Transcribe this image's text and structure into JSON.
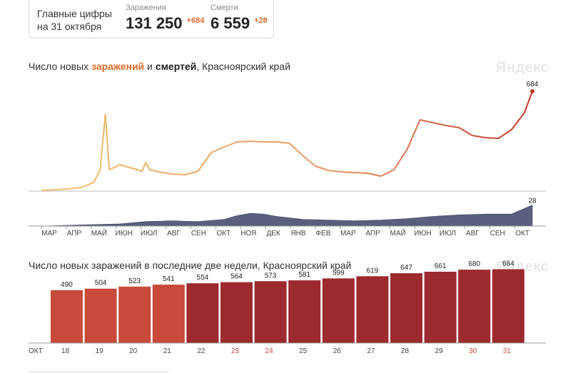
{
  "summary": {
    "heading": "Главные цифры на 31 октября",
    "cases": {
      "label": "Заражения",
      "value": "131 250",
      "delta": "+684"
    },
    "deaths": {
      "label": "Смерти",
      "value": "6 559",
      "delta": "+28"
    }
  },
  "chart1": {
    "title_prefix": "Число новых ",
    "title_cases": "заражений",
    "title_mid": " и ",
    "title_deaths": "смертей",
    "title_suffix": ", Красноярский край",
    "brand": "Яндекс"
  },
  "chart2": {
    "title": "Число новых заражений в последние две недели, Красноярский край",
    "brand": "Яндекс"
  },
  "colors": {
    "cases_line_start": "#f0c26a",
    "cases_line_end": "#c0392b",
    "deaths_area": "#5a5f7e",
    "bar_light": "#c94a3a",
    "bar_dark": "#9c2a2e",
    "weekend": "#d0443a"
  },
  "chart_data": [
    {
      "type": "line",
      "series": [
        {
          "name": "заражений",
          "end_label": "684",
          "points": [
            [
              0,
              1
            ],
            [
              1,
              2
            ],
            [
              2,
              3
            ],
            [
              3,
              5
            ],
            [
              4,
              12
            ],
            [
              4.5,
              30
            ],
            [
              4.9,
              108
            ],
            [
              5.2,
              30
            ],
            [
              6,
              37
            ],
            [
              7,
              32
            ],
            [
              7.7,
              28
            ],
            [
              8,
              40
            ],
            [
              8.3,
              30
            ],
            [
              9,
              27
            ],
            [
              10,
              24
            ],
            [
              11,
              23
            ],
            [
              12,
              28
            ],
            [
              13,
              54
            ],
            [
              14,
              62
            ],
            [
              15,
              69
            ],
            [
              16,
              70
            ],
            [
              17,
              69
            ],
            [
              18,
              69
            ],
            [
              19,
              67
            ],
            [
              20,
              50
            ],
            [
              21,
              35
            ],
            [
              22,
              29
            ],
            [
              23,
              27
            ],
            [
              24,
              26
            ],
            [
              25,
              25
            ],
            [
              26,
              21
            ],
            [
              27,
              30
            ],
            [
              28,
              58
            ],
            [
              29,
              100
            ],
            [
              30,
              96
            ],
            [
              31,
              92
            ],
            [
              32,
              89
            ],
            [
              33,
              78
            ],
            [
              34,
              75
            ],
            [
              35,
              74
            ],
            [
              36,
              86
            ],
            [
              37,
              110
            ],
            [
              37.6,
              140
            ]
          ]
        },
        {
          "name": "смертей",
          "end_label": "28",
          "points": [
            [
              0,
              0
            ],
            [
              2,
              1
            ],
            [
              4,
              2
            ],
            [
              6,
              3
            ],
            [
              8,
              6
            ],
            [
              10,
              7
            ],
            [
              12,
              6
            ],
            [
              14,
              9
            ],
            [
              15,
              14
            ],
            [
              16,
              17
            ],
            [
              17,
              16
            ],
            [
              18,
              13
            ],
            [
              19,
              11
            ],
            [
              20,
              9
            ],
            [
              22,
              8
            ],
            [
              24,
              7
            ],
            [
              26,
              8
            ],
            [
              28,
              10
            ],
            [
              30,
              13
            ],
            [
              32,
              15
            ],
            [
              34,
              16
            ],
            [
              36,
              16
            ],
            [
              37.6,
              28
            ]
          ]
        }
      ],
      "x_ticks": [
        "МАР",
        "АПР",
        "МАЙ",
        "ИЮН",
        "ИЮЛ",
        "АВГ",
        "СЕН",
        "ОКТ",
        "НОЯ",
        "ДЕК",
        "ЯНВ",
        "ФЕВ",
        "МАР",
        "АПР",
        "МАЙ",
        "ИЮН",
        "ИЮЛ",
        "АВГ",
        "СЕН",
        "ОКТ"
      ],
      "grid": false,
      "legend": "none"
    },
    {
      "type": "bar",
      "axis_label": "ОКТ",
      "categories": [
        "18",
        "19",
        "20",
        "21",
        "22",
        "23",
        "24",
        "25",
        "26",
        "27",
        "28",
        "29",
        "30",
        "31"
      ],
      "values": [
        490,
        504,
        523,
        541,
        554,
        564,
        573,
        581,
        599,
        619,
        647,
        661,
        680,
        684
      ],
      "weekend": [
        false,
        false,
        false,
        false,
        false,
        true,
        true,
        false,
        false,
        false,
        false,
        false,
        true,
        true
      ],
      "shade": [
        "light",
        "light",
        "light",
        "light",
        "dark",
        "dark",
        "dark",
        "dark",
        "dark",
        "dark",
        "dark",
        "dark",
        "dark",
        "dark"
      ],
      "ylim": [
        0,
        760
      ]
    }
  ]
}
